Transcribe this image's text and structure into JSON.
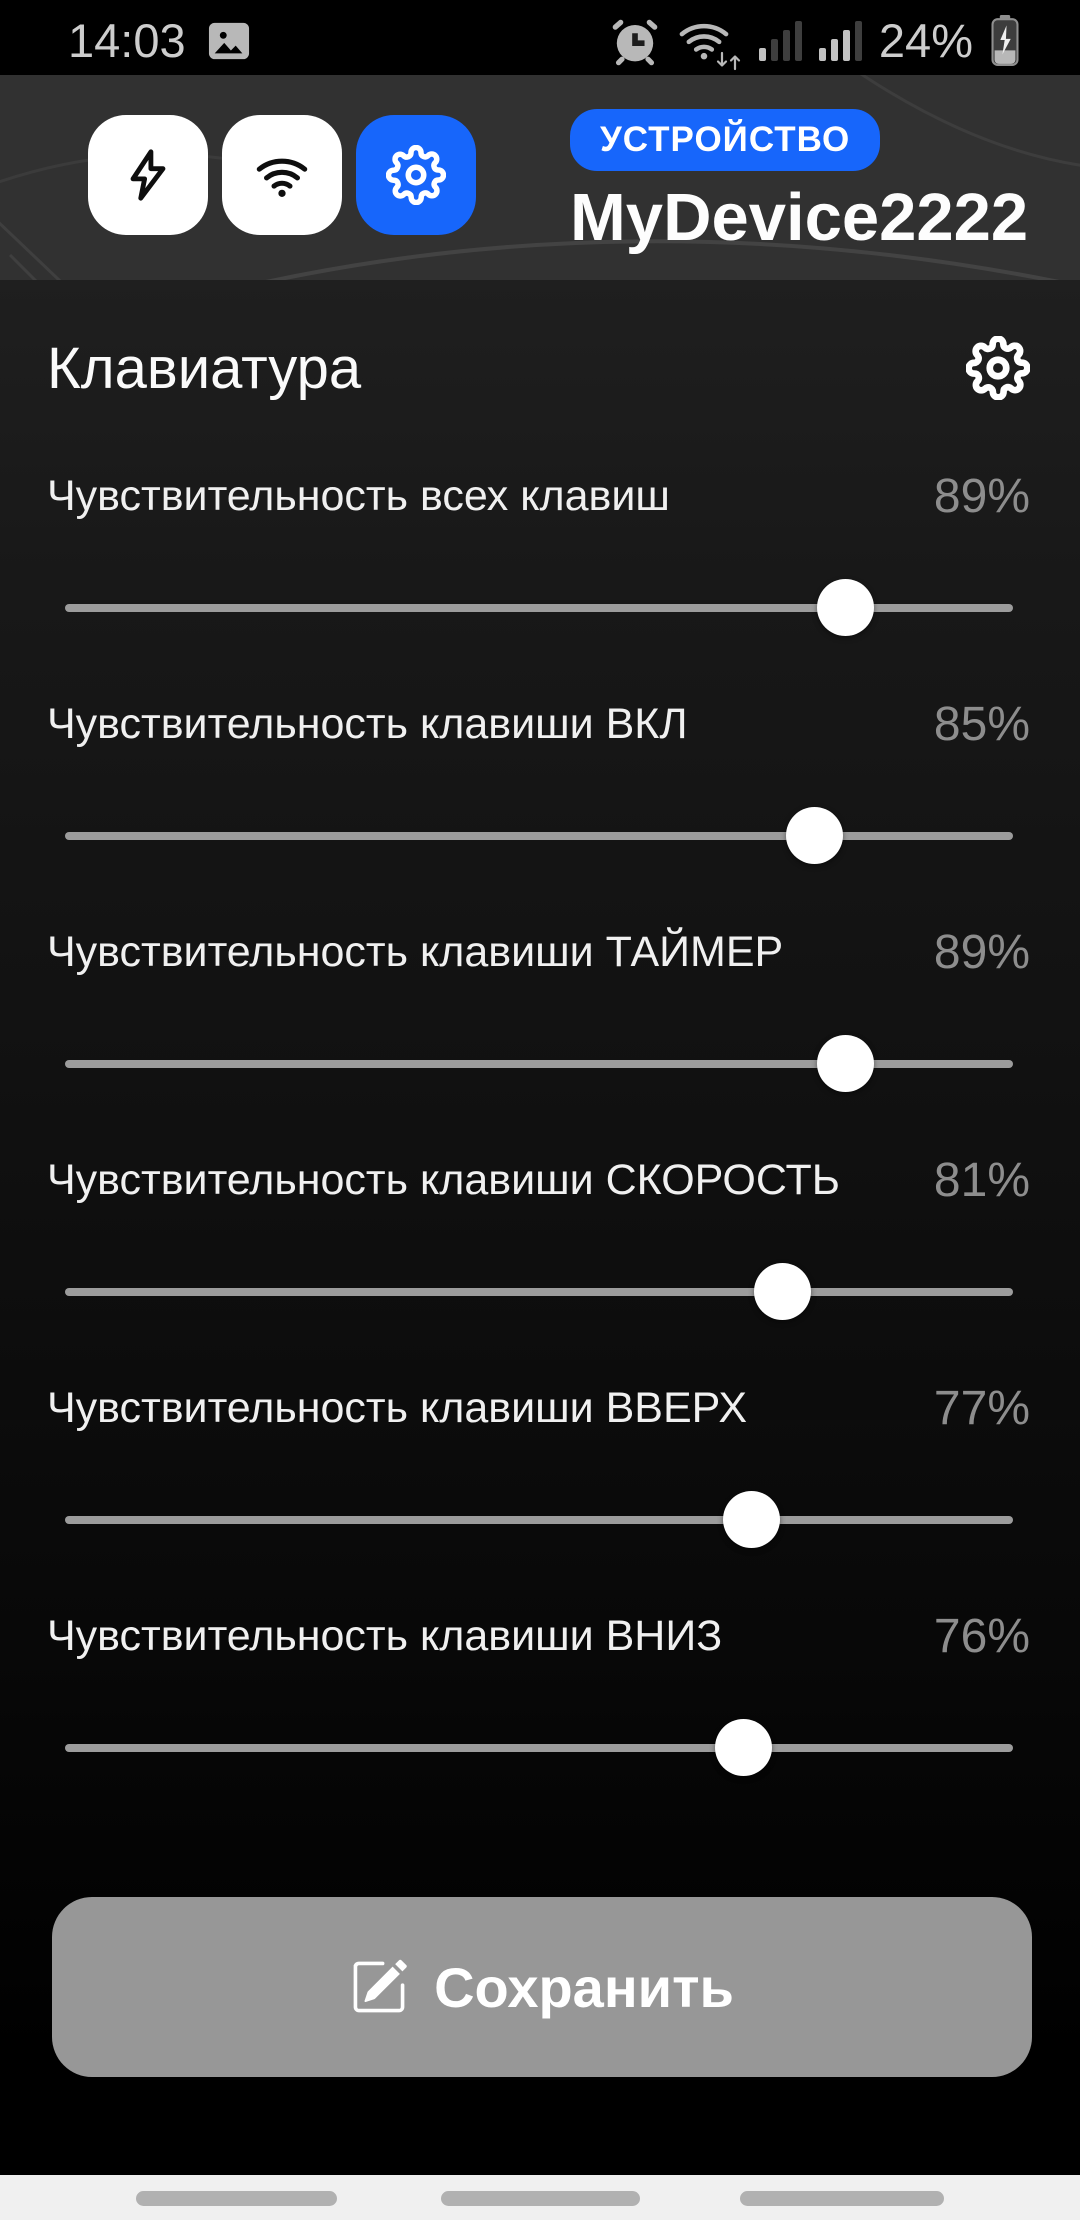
{
  "status_bar": {
    "time": "14:03",
    "battery_percent": "24%",
    "signal_levels": [
      1,
      3
    ],
    "icons": [
      "image-icon",
      "alarm-icon",
      "wifi-icon",
      "signal-icon",
      "signal-icon",
      "battery-charging-icon"
    ]
  },
  "header": {
    "badge_label": "УСТРОЙСТВО",
    "device_name": "MyDevice2222",
    "buttons": [
      {
        "icon": "lightning-icon",
        "active": false
      },
      {
        "icon": "wifi-icon",
        "active": false
      },
      {
        "icon": "gear-icon",
        "active": true
      }
    ]
  },
  "keyboard_section": {
    "title": "Клавиатура",
    "icon": "gear-icon"
  },
  "sliders": [
    {
      "label": "Чувствительность всех клавиш",
      "value": 89,
      "percent": "89%"
    },
    {
      "label": "Чувствительность клавиши ВКЛ",
      "value": 85,
      "percent": "85%"
    },
    {
      "label": "Чувствительность клавиши ТАЙМЕР",
      "value": 89,
      "percent": "89%"
    },
    {
      "label": "Чувствительность клавиши СКОРОСТЬ",
      "value": 81,
      "percent": "81%"
    },
    {
      "label": "Чувствительность клавиши ВВЕРХ",
      "value": 77,
      "percent": "77%"
    },
    {
      "label": "Чувствительность клавиши ВНИЗ",
      "value": 76,
      "percent": "76%"
    }
  ],
  "save_button": {
    "label": "Сохранить",
    "icon": "edit-pencil-square-icon"
  },
  "colors": {
    "accent_blue": "#1766fb",
    "header_bg": "#313131",
    "slider_track": "#9c9c9c",
    "save_button_bg": "#979797",
    "nav_bar_bg": "#f0f0f0"
  }
}
